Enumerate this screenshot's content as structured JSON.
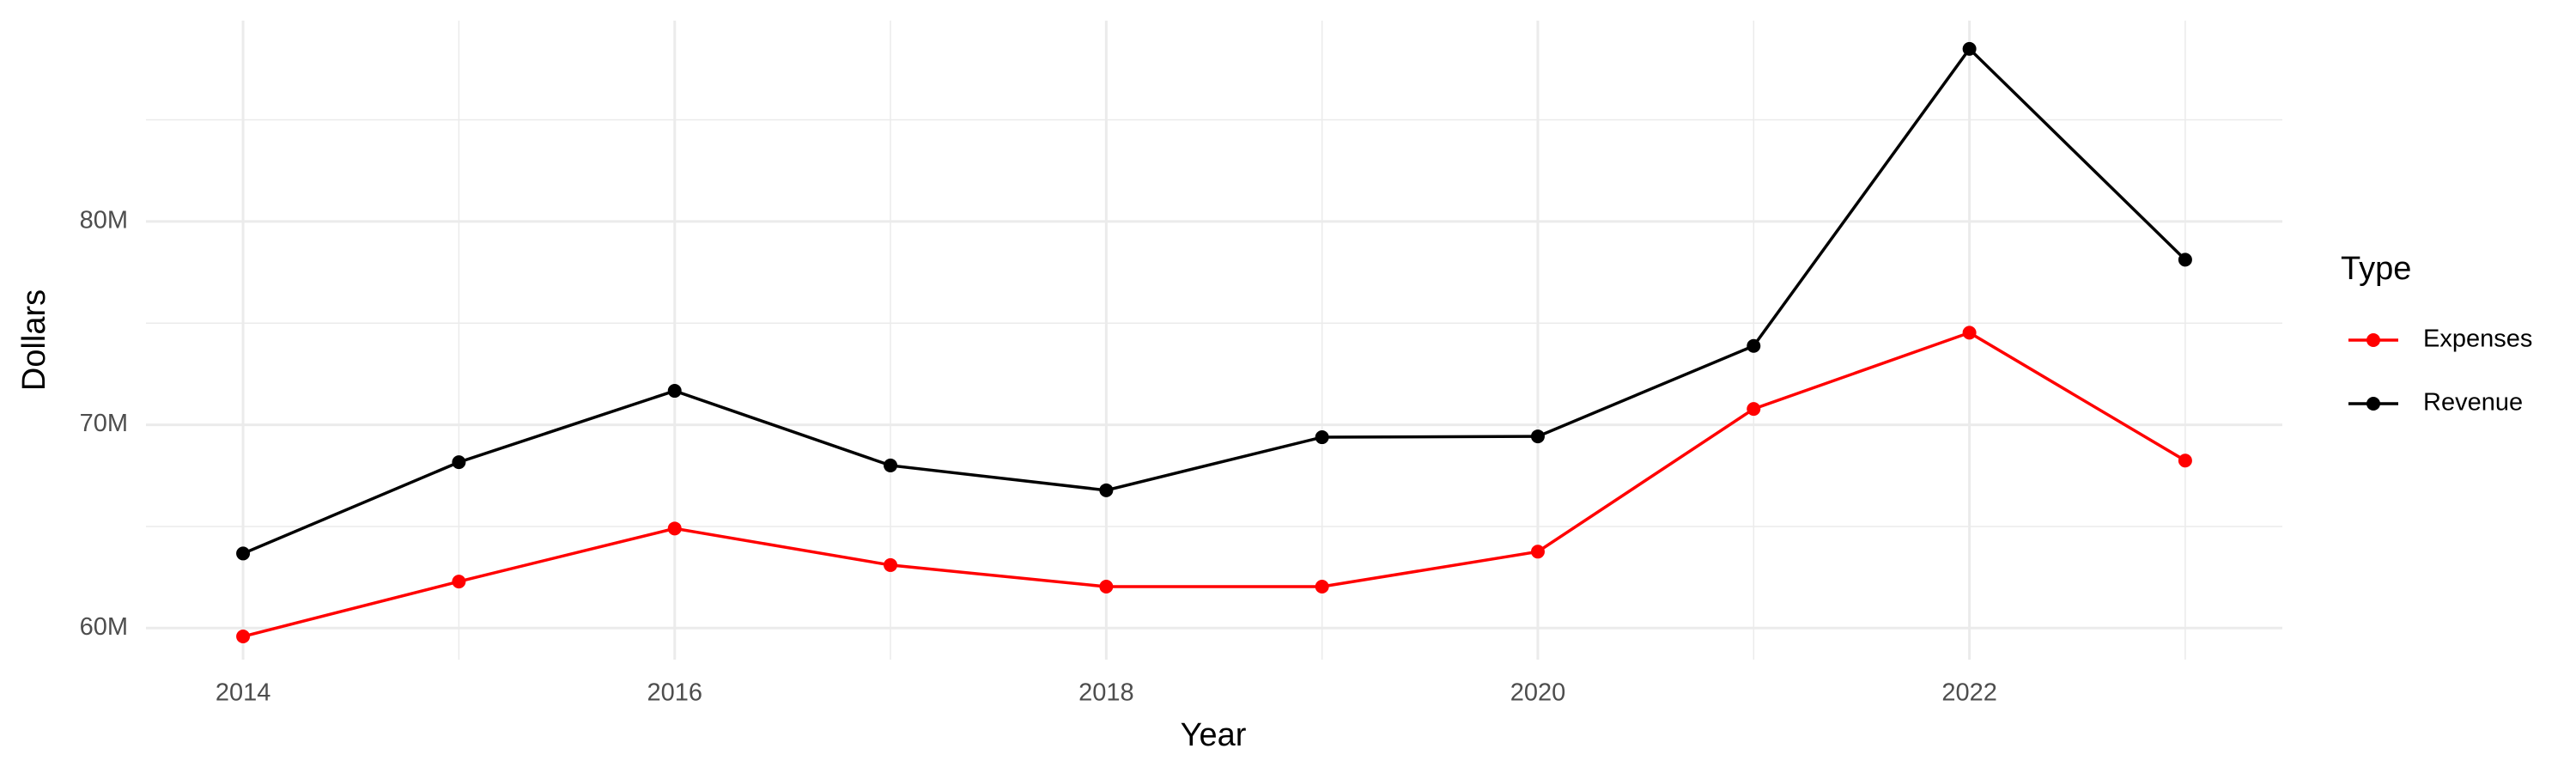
{
  "chart_data": {
    "type": "line",
    "x_label": "Year",
    "y_label": "Dollars",
    "legend_title": "Type",
    "x": [
      2014,
      2015,
      2016,
      2017,
      2018,
      2019,
      2020,
      2021,
      2022,
      2023
    ],
    "series": [
      {
        "name": "Expenses",
        "color": "#ff0000",
        "values": [
          59590000,
          62290000,
          64900000,
          63100000,
          62040000,
          62040000,
          63760000,
          70780000,
          74530000,
          68240000
        ]
      },
      {
        "name": "Revenue",
        "color": "#000000",
        "values": [
          63670000,
          68160000,
          71670000,
          68000000,
          66780000,
          69390000,
          69430000,
          73880000,
          88490000,
          78120000
        ]
      }
    ],
    "xlim": [
      2013.55,
      2023.45
    ],
    "xticks": [
      2014,
      2016,
      2018,
      2020,
      2022
    ],
    "ylim": [
      58450000,
      89880000
    ],
    "yticks": [
      {
        "value": 60000000,
        "label": "60M"
      },
      {
        "value": 70000000,
        "label": "70M"
      },
      {
        "value": 80000000,
        "label": "80M"
      }
    ],
    "grid": true,
    "legend": "right"
  }
}
